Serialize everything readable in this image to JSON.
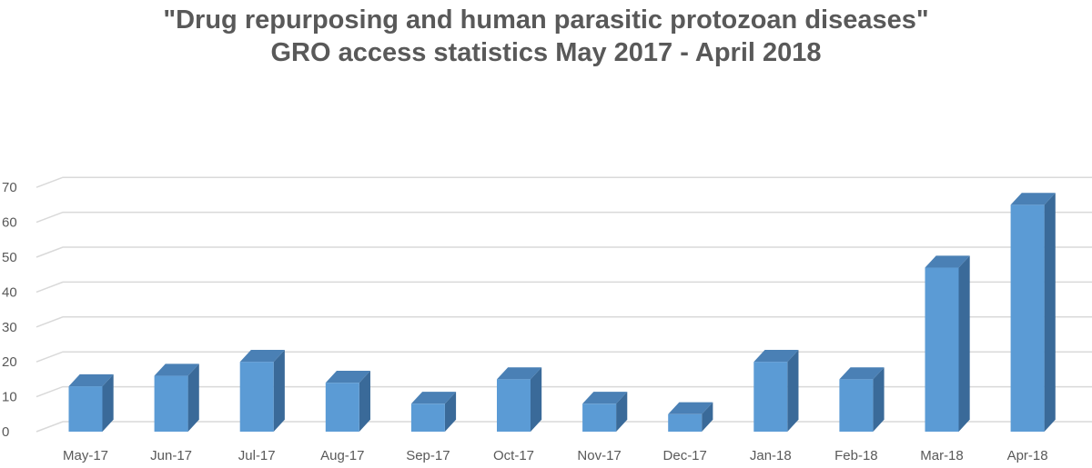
{
  "chart_data": {
    "type": "bar",
    "style": "3d-column",
    "title": [
      "\"Drug repurposing and human parasitic protozoan diseases\"",
      "GRO access statistics May 2017 - April 2018"
    ],
    "categories": [
      "May-17",
      "Jun-17",
      "Jul-17",
      "Aug-17",
      "Sep-17",
      "Oct-17",
      "Nov-17",
      "Dec-17",
      "Jan-18",
      "Feb-18",
      "Mar-18",
      "Apr-18"
    ],
    "values": [
      13,
      16,
      20,
      14,
      8,
      15,
      8,
      5,
      20,
      15,
      47,
      65
    ],
    "ylim": [
      0,
      70
    ],
    "yticks": [
      0,
      10,
      20,
      30,
      40,
      50,
      60,
      70
    ],
    "xlabel": "",
    "ylabel": "",
    "grid": true,
    "legend": "none",
    "colors": {
      "bar_front": "#5b9bd5",
      "bar_side": "#3a6a99",
      "bar_top": "#4a80b5",
      "grid": "#d9d9d9",
      "text": "#595959"
    }
  }
}
